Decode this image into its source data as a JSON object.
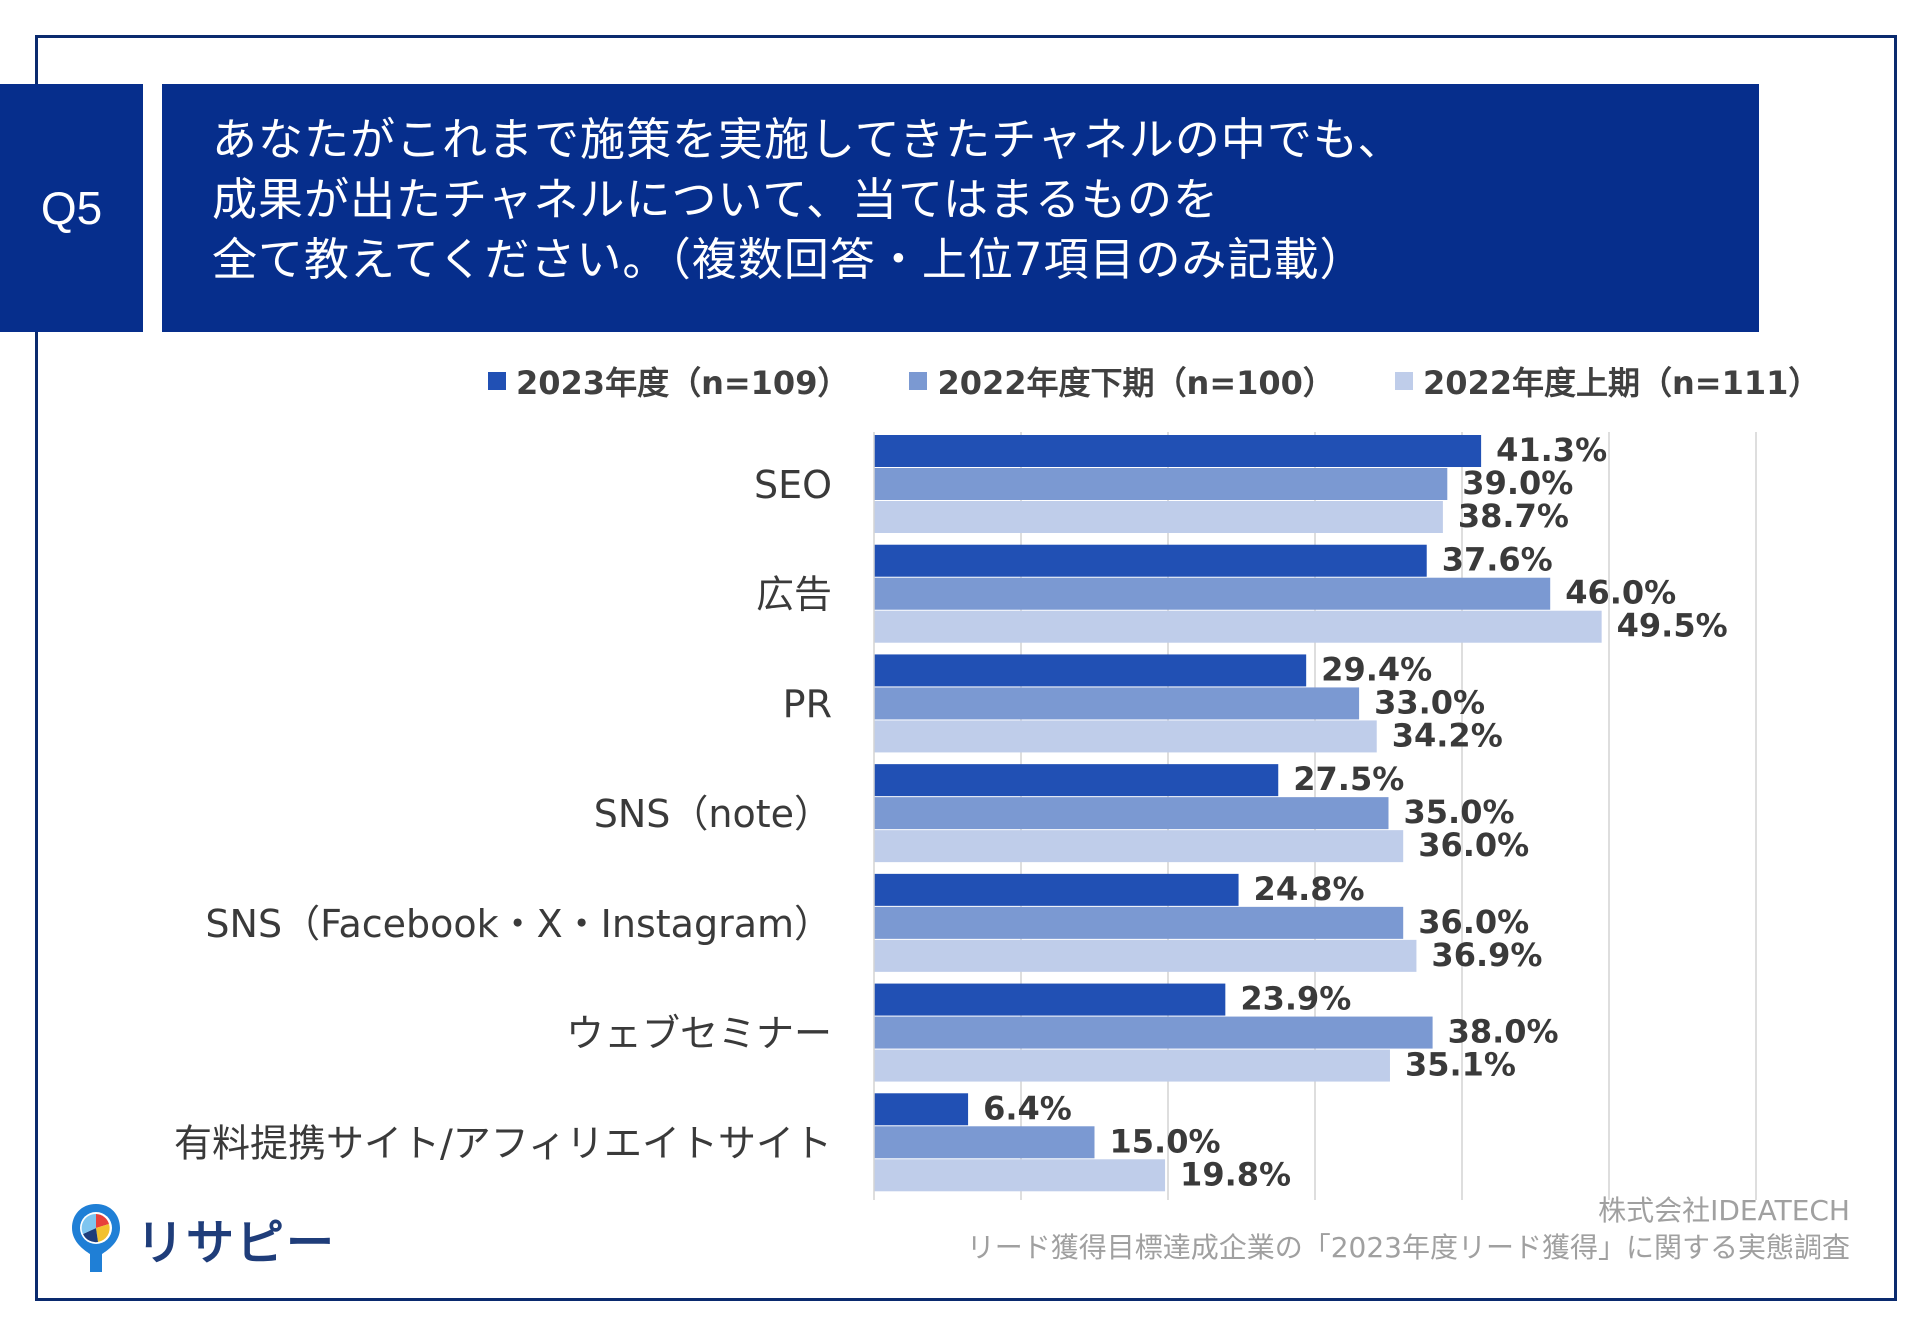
{
  "question": {
    "number": "Q5",
    "lines": [
      "あなたがこれまで施策を実施してきたチャネルの中でも、",
      "成果が出たチャネルについて、当てはまるものを",
      "全て教えてください。（複数回答・上位7項目のみ記載）"
    ]
  },
  "source": {
    "company": "株式会社IDEATECH",
    "survey": "リード獲得目標達成企業の「2023年度リード獲得」に関する実態調査"
  },
  "logo": {
    "text": "リサピー"
  },
  "colors": {
    "navy": "#062e8c",
    "s1": "#2150b4",
    "s2": "#7b99d2",
    "s3": "#bfcdea"
  },
  "chart_data": {
    "type": "bar",
    "orientation": "horizontal",
    "categories": [
      "SEO",
      "広告",
      "PR",
      "SNS（note）",
      "SNS（Facebook・X・Instagram）",
      "ウェブセミナー",
      "有料提携サイト/アフィリエイトサイト"
    ],
    "series": [
      {
        "name": "2023年度（n=109）",
        "values": [
          41.3,
          37.6,
          29.4,
          27.5,
          24.8,
          23.9,
          6.4
        ]
      },
      {
        "name": "2022年度下期（n=100）",
        "values": [
          39.0,
          46.0,
          33.0,
          35.0,
          36.0,
          38.0,
          15.0
        ]
      },
      {
        "name": "2022年度上期（n=111）",
        "values": [
          38.7,
          49.5,
          34.2,
          36.0,
          36.9,
          35.1,
          19.8
        ]
      }
    ],
    "value_suffix": "%",
    "xlim": [
      0,
      60
    ],
    "grid": true,
    "legend_position": "top"
  }
}
